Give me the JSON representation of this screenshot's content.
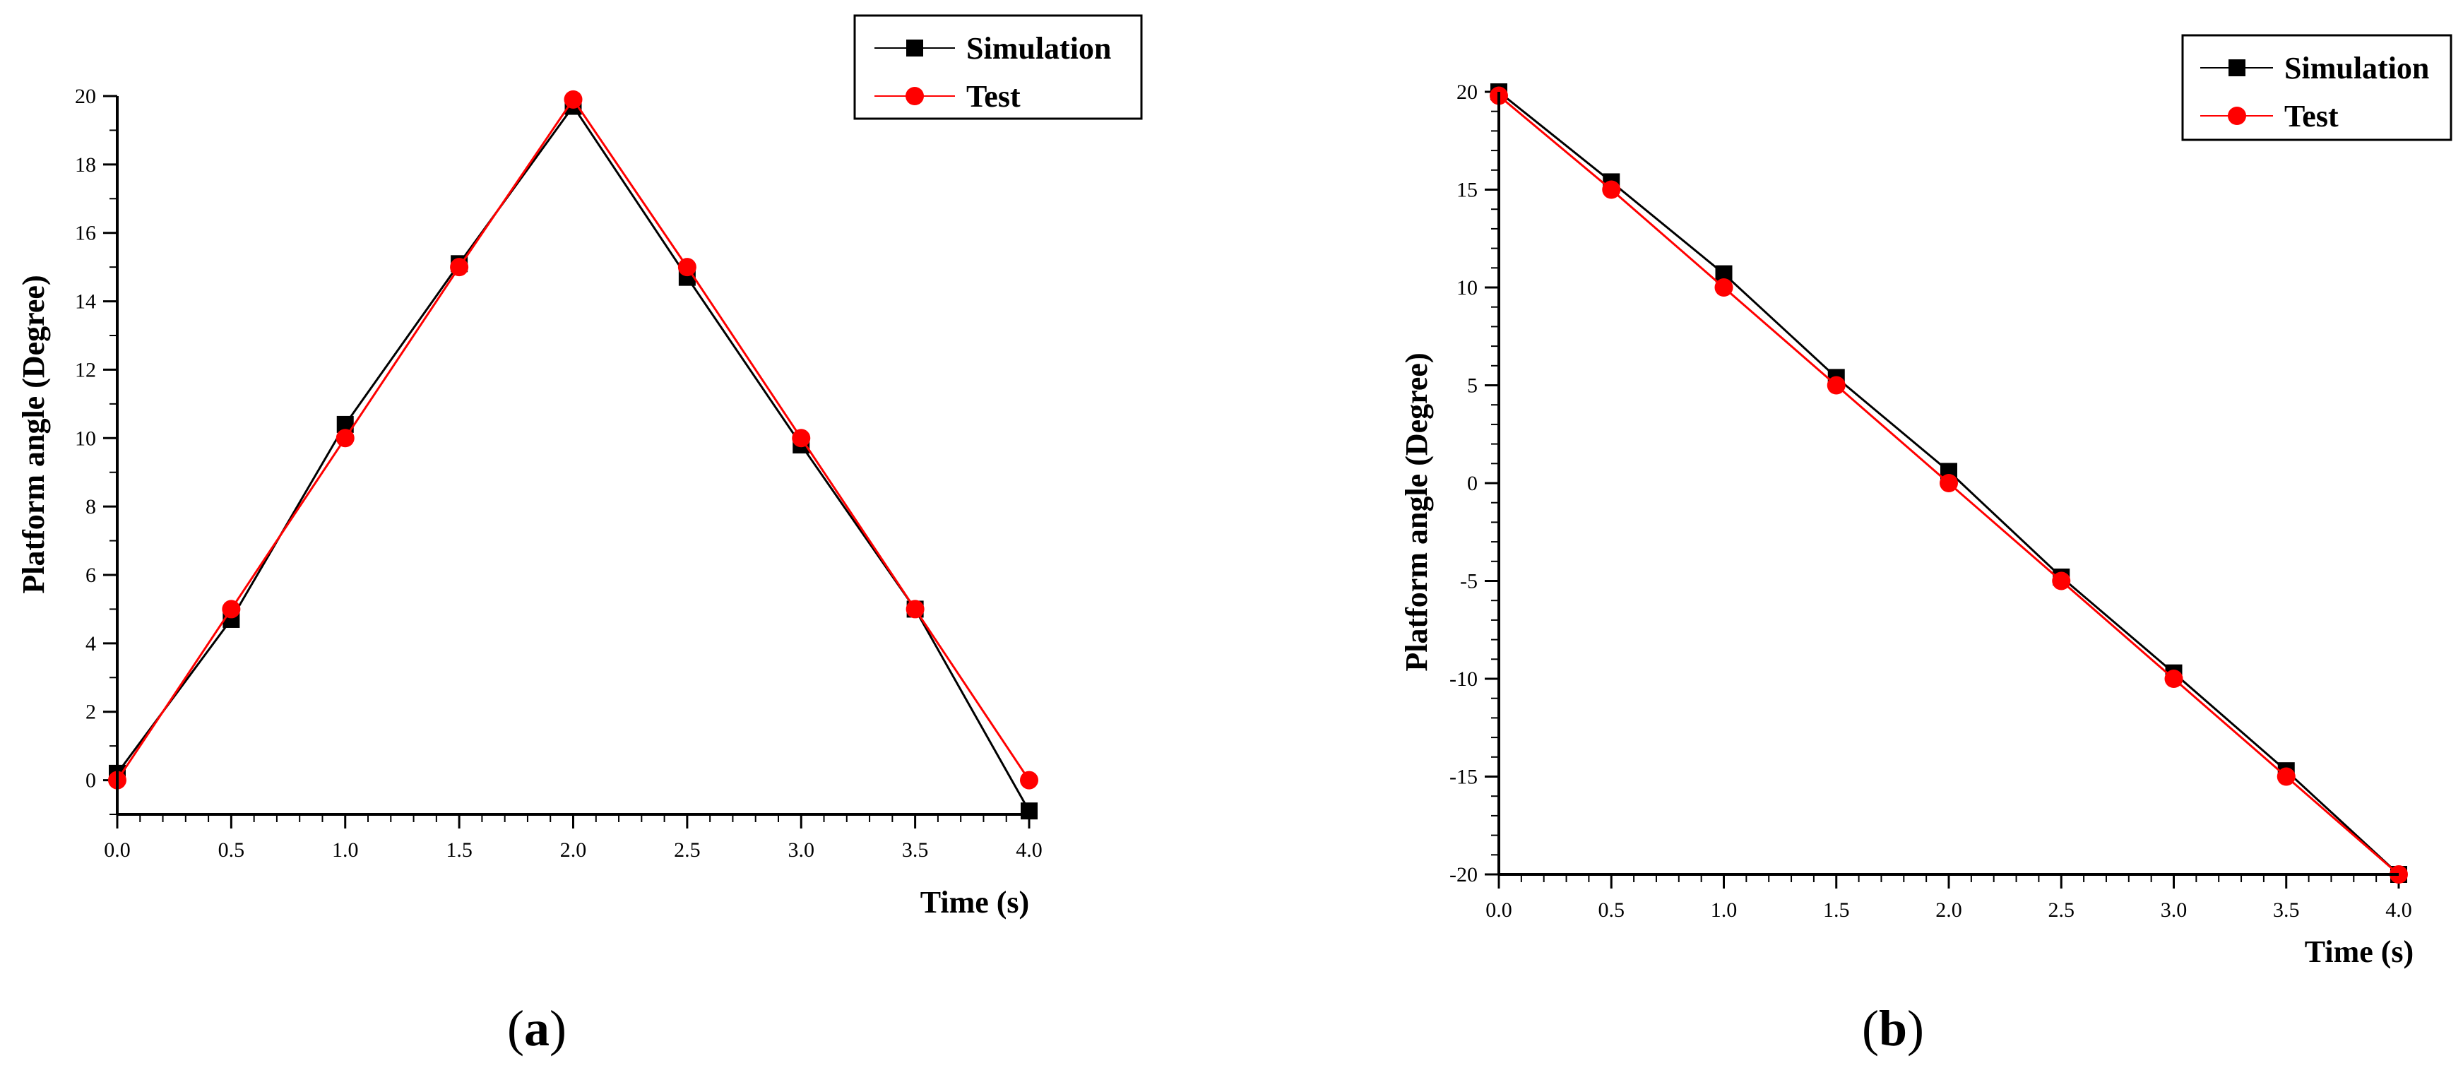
{
  "figure": {
    "panels": [
      {
        "label_open": "(",
        "label_letter": "a",
        "label_close": ")"
      },
      {
        "label_open": "(",
        "label_letter": "b",
        "label_close": ")"
      }
    ]
  },
  "chart_data": [
    {
      "type": "line",
      "title": "",
      "xlabel": "Time (s)",
      "ylabel": "Platform angle (Degree)",
      "xlim": [
        0,
        4.0
      ],
      "ylim": [
        -1,
        20
      ],
      "xticks": [
        "0.0",
        "0.5",
        "1.0",
        "1.5",
        "2.0",
        "2.5",
        "3.0",
        "3.5",
        "4.0"
      ],
      "yticks": [
        "0",
        "2",
        "4",
        "6",
        "8",
        "10",
        "12",
        "14",
        "16",
        "18",
        "20"
      ],
      "x": [
        0.0,
        0.5,
        1.0,
        1.5,
        2.0,
        2.5,
        3.0,
        3.5,
        4.0
      ],
      "legend_position": "top-right",
      "series": [
        {
          "name": "Simulation",
          "color": "#000000",
          "marker": "square",
          "values": [
            0.2,
            4.7,
            10.4,
            15.1,
            19.7,
            14.7,
            9.8,
            5.0,
            -0.9
          ]
        },
        {
          "name": "Test",
          "color": "#ff0000",
          "marker": "circle",
          "values": [
            0.0,
            5.0,
            10.0,
            15.0,
            19.9,
            15.0,
            10.0,
            5.0,
            0.0
          ]
        }
      ]
    },
    {
      "type": "line",
      "title": "",
      "xlabel": "Time (s)",
      "ylabel": "Platform angle (Degree)",
      "xlim": [
        0,
        4.0
      ],
      "ylim": [
        -20,
        20
      ],
      "xticks": [
        "0.0",
        "0.5",
        "1.0",
        "1.5",
        "2.0",
        "2.5",
        "3.0",
        "3.5",
        "4.0"
      ],
      "yticks": [
        "-20",
        "-15",
        "-10",
        "-5",
        "0",
        "5",
        "10",
        "15",
        "20"
      ],
      "x": [
        0.0,
        0.5,
        1.0,
        1.5,
        2.0,
        2.5,
        3.0,
        3.5,
        4.0
      ],
      "legend_position": "top-right",
      "series": [
        {
          "name": "Simulation",
          "color": "#000000",
          "marker": "square",
          "values": [
            20.0,
            15.4,
            10.7,
            5.4,
            0.6,
            -4.8,
            -9.7,
            -14.7,
            -20.0
          ]
        },
        {
          "name": "Test",
          "color": "#ff0000",
          "marker": "circle",
          "values": [
            19.8,
            15.0,
            10.0,
            5.0,
            0.0,
            -5.0,
            -10.0,
            -15.0,
            -20.0
          ]
        }
      ]
    }
  ]
}
